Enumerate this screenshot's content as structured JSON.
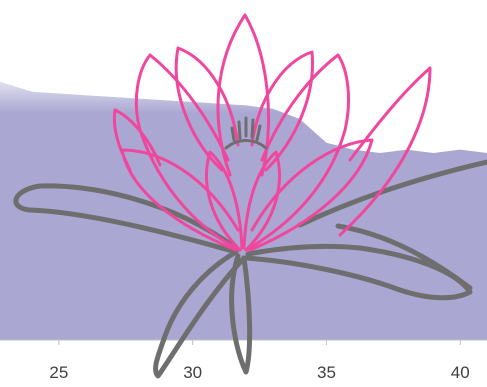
{
  "chart_data": {
    "type": "area",
    "title": "",
    "xlabel": "",
    "ylabel": "",
    "xlim": [
      22.8,
      41.0
    ],
    "ylim": [
      0,
      1
    ],
    "grid": false,
    "x_ticks": [
      25,
      30,
      35,
      40
    ],
    "x_tick_labels": [
      "25",
      "30",
      "35",
      "40"
    ],
    "series": [
      {
        "color": "#aaa8d2",
        "x": [
          22.8,
          24,
          26,
          28,
          30,
          32,
          33,
          34,
          35,
          36,
          37,
          38,
          39,
          40,
          41
        ],
        "values": [
          0.76,
          0.73,
          0.72,
          0.71,
          0.7,
          0.69,
          0.68,
          0.65,
          0.58,
          0.56,
          0.55,
          0.56,
          0.55,
          0.56,
          0.55
        ]
      }
    ]
  },
  "decoration": {
    "name": "lotus-flower-illustration",
    "petal_color": "#f0479e",
    "stem_color": "#6e6e6e"
  }
}
